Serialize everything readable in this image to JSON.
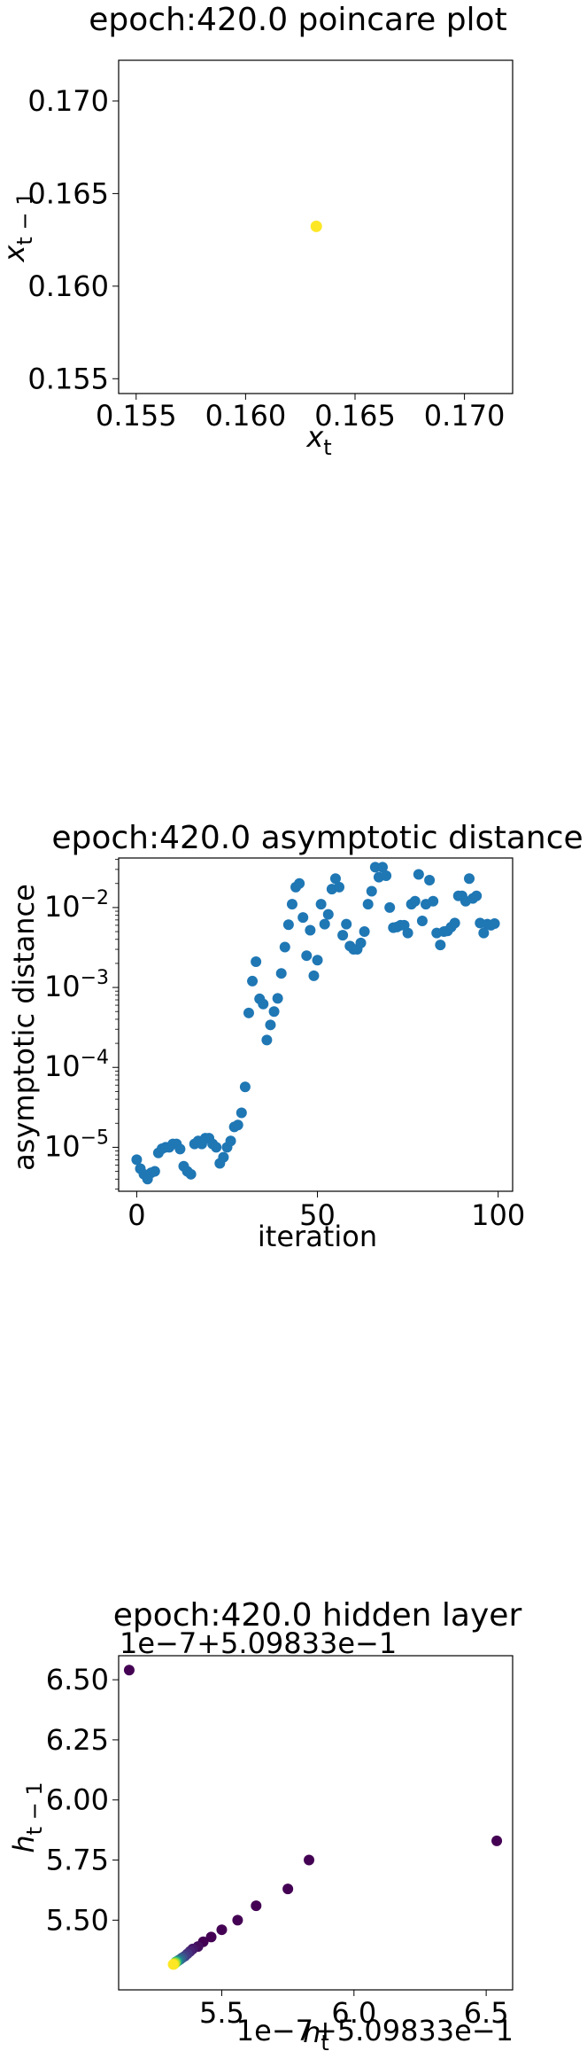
{
  "chart_data": [
    {
      "type": "scatter",
      "title": "epoch:420.0 poincare plot",
      "xlabel": {
        "base": "x",
        "sub": "t"
      },
      "ylabel": {
        "base": "x",
        "sub": "t − 1"
      },
      "xlim": [
        0.1542,
        0.1722
      ],
      "ylim": [
        0.1542,
        0.1722
      ],
      "xticks": [
        0.155,
        0.16,
        0.165,
        0.17
      ],
      "xtick_labels": [
        "0.155",
        "0.160",
        "0.165",
        "0.170"
      ],
      "yticks": [
        0.155,
        0.16,
        0.165,
        0.17
      ],
      "ytick_labels": [
        "0.155",
        "0.160",
        "0.165",
        "0.170"
      ],
      "points": [
        {
          "x": 0.16323,
          "y": 0.16323,
          "color": "#fde725"
        }
      ],
      "grid": false
    },
    {
      "type": "scatter",
      "title": "epoch:420.0 asymptotic distance",
      "xlabel": "iteration",
      "ylabel": "asymptotic distance",
      "yscale": "log",
      "xlim": [
        -5,
        104
      ],
      "ylim_log10": [
        -5.55,
        -1.38
      ],
      "xticks": [
        0,
        50,
        100
      ],
      "xtick_labels": [
        "0",
        "50",
        "100"
      ],
      "ytick_exponents": [
        -5,
        -4,
        -3,
        -2
      ],
      "color": "#1f77b4",
      "grid": false,
      "x": [
        0,
        1,
        2,
        3,
        4,
        5,
        6,
        7,
        8,
        9,
        10,
        11,
        12,
        13,
        14,
        15,
        16,
        17,
        18,
        19,
        20,
        21,
        22,
        23,
        24,
        25,
        26,
        27,
        28,
        29,
        30,
        31,
        32,
        33,
        34,
        35,
        36,
        37,
        38,
        39,
        40,
        41,
        42,
        43,
        44,
        45,
        46,
        47,
        48,
        49,
        50,
        51,
        52,
        53,
        54,
        55,
        56,
        57,
        58,
        59,
        60,
        61,
        62,
        63,
        64,
        65,
        66,
        67,
        68,
        69,
        70,
        71,
        72,
        73,
        74,
        75,
        76,
        77,
        78,
        79,
        80,
        81,
        82,
        83,
        84,
        85,
        86,
        87,
        88,
        89,
        90,
        91,
        92,
        93,
        94,
        95,
        96,
        97,
        98,
        99
      ],
      "y": [
        7e-06,
        5.4e-06,
        4.6e-06,
        4e-06,
        4.8e-06,
        5e-06,
        8.5e-06,
        9.6e-06,
        1e-05,
        1e-05,
        1.1e-05,
        1.1e-05,
        9.5e-06,
        5.8e-06,
        5e-06,
        4.6e-06,
        1.1e-05,
        1.2e-05,
        1.1e-05,
        1.3e-05,
        1.3e-05,
        1.1e-05,
        1e-05,
        6.3e-06,
        7.5e-06,
        1e-05,
        1.2e-05,
        1.8e-05,
        1.9e-05,
        2.7e-05,
        5.7e-05,
        0.00048,
        0.0012,
        0.0021,
        0.00072,
        0.00062,
        0.00022,
        0.00034,
        0.0005,
        0.00073,
        0.0015,
        0.0032,
        0.0061,
        0.011,
        0.018,
        0.02,
        0.0075,
        0.0025,
        0.0052,
        0.0014,
        0.0022,
        0.011,
        0.0062,
        0.0082,
        0.017,
        0.023,
        0.018,
        0.0045,
        0.0062,
        0.0033,
        0.003,
        0.003,
        0.0036,
        0.005,
        0.011,
        0.016,
        0.032,
        0.024,
        0.032,
        0.025,
        0.01,
        0.0056,
        0.0057,
        0.006,
        0.006,
        0.0048,
        0.011,
        0.012,
        0.026,
        0.0068,
        0.011,
        0.022,
        0.012,
        0.0048,
        0.0034,
        0.005,
        0.0051,
        0.0057,
        0.0064,
        0.014,
        0.014,
        0.012,
        0.023,
        0.013,
        0.014,
        0.0064,
        0.0048,
        0.0062,
        0.006,
        0.0063
      ]
    },
    {
      "type": "scatter",
      "title": "epoch:420.0 hidden layer",
      "xlabel": {
        "base": "h",
        "sub": "t"
      },
      "ylabel": {
        "base": "h",
        "sub": "t − 1"
      },
      "x_offset_label": "1e−7+5.09833e−1",
      "y_offset_label": "1e−7+5.09833e−1",
      "xlim": [
        5.11,
        6.6
      ],
      "ylim": [
        5.21,
        6.6
      ],
      "xticks": [
        5.5,
        6.0,
        6.5
      ],
      "xtick_labels": [
        "5.5",
        "6.0",
        "6.5"
      ],
      "yticks": [
        5.5,
        5.75,
        6.0,
        6.25,
        6.5
      ],
      "ytick_labels": [
        "5.50",
        "5.75",
        "6.00",
        "6.25",
        "6.50"
      ],
      "grid": false,
      "x": [
        5.15,
        6.54,
        5.83,
        5.75,
        5.63,
        5.56,
        5.5,
        5.46,
        5.43,
        5.41,
        5.39,
        5.38,
        5.37,
        5.36,
        5.35,
        5.343,
        5.337,
        5.333,
        5.33,
        5.328,
        5.327,
        5.326,
        5.325,
        5.323,
        5.322,
        5.32,
        5.318,
        5.316
      ],
      "y": [
        6.54,
        5.83,
        5.75,
        5.63,
        5.56,
        5.5,
        5.46,
        5.43,
        5.41,
        5.39,
        5.38,
        5.37,
        5.36,
        5.35,
        5.343,
        5.337,
        5.333,
        5.33,
        5.328,
        5.327,
        5.326,
        5.325,
        5.323,
        5.322,
        5.32,
        5.318,
        5.316,
        5.316
      ],
      "colors": [
        "#440154",
        "#440154",
        "#440154",
        "#440154",
        "#440154",
        "#440154",
        "#440154",
        "#440154",
        "#440154",
        "#450f5e",
        "#46186a",
        "#472273",
        "#46317e",
        "#433e85",
        "#3b528b",
        "#32648e",
        "#2c728e",
        "#25838e",
        "#21918c",
        "#1fa187",
        "#27ad81",
        "#3dbc74",
        "#5ac864",
        "#7ad151",
        "#a0da39",
        "#c8e020",
        "#e6e419",
        "#fde725"
      ]
    }
  ]
}
